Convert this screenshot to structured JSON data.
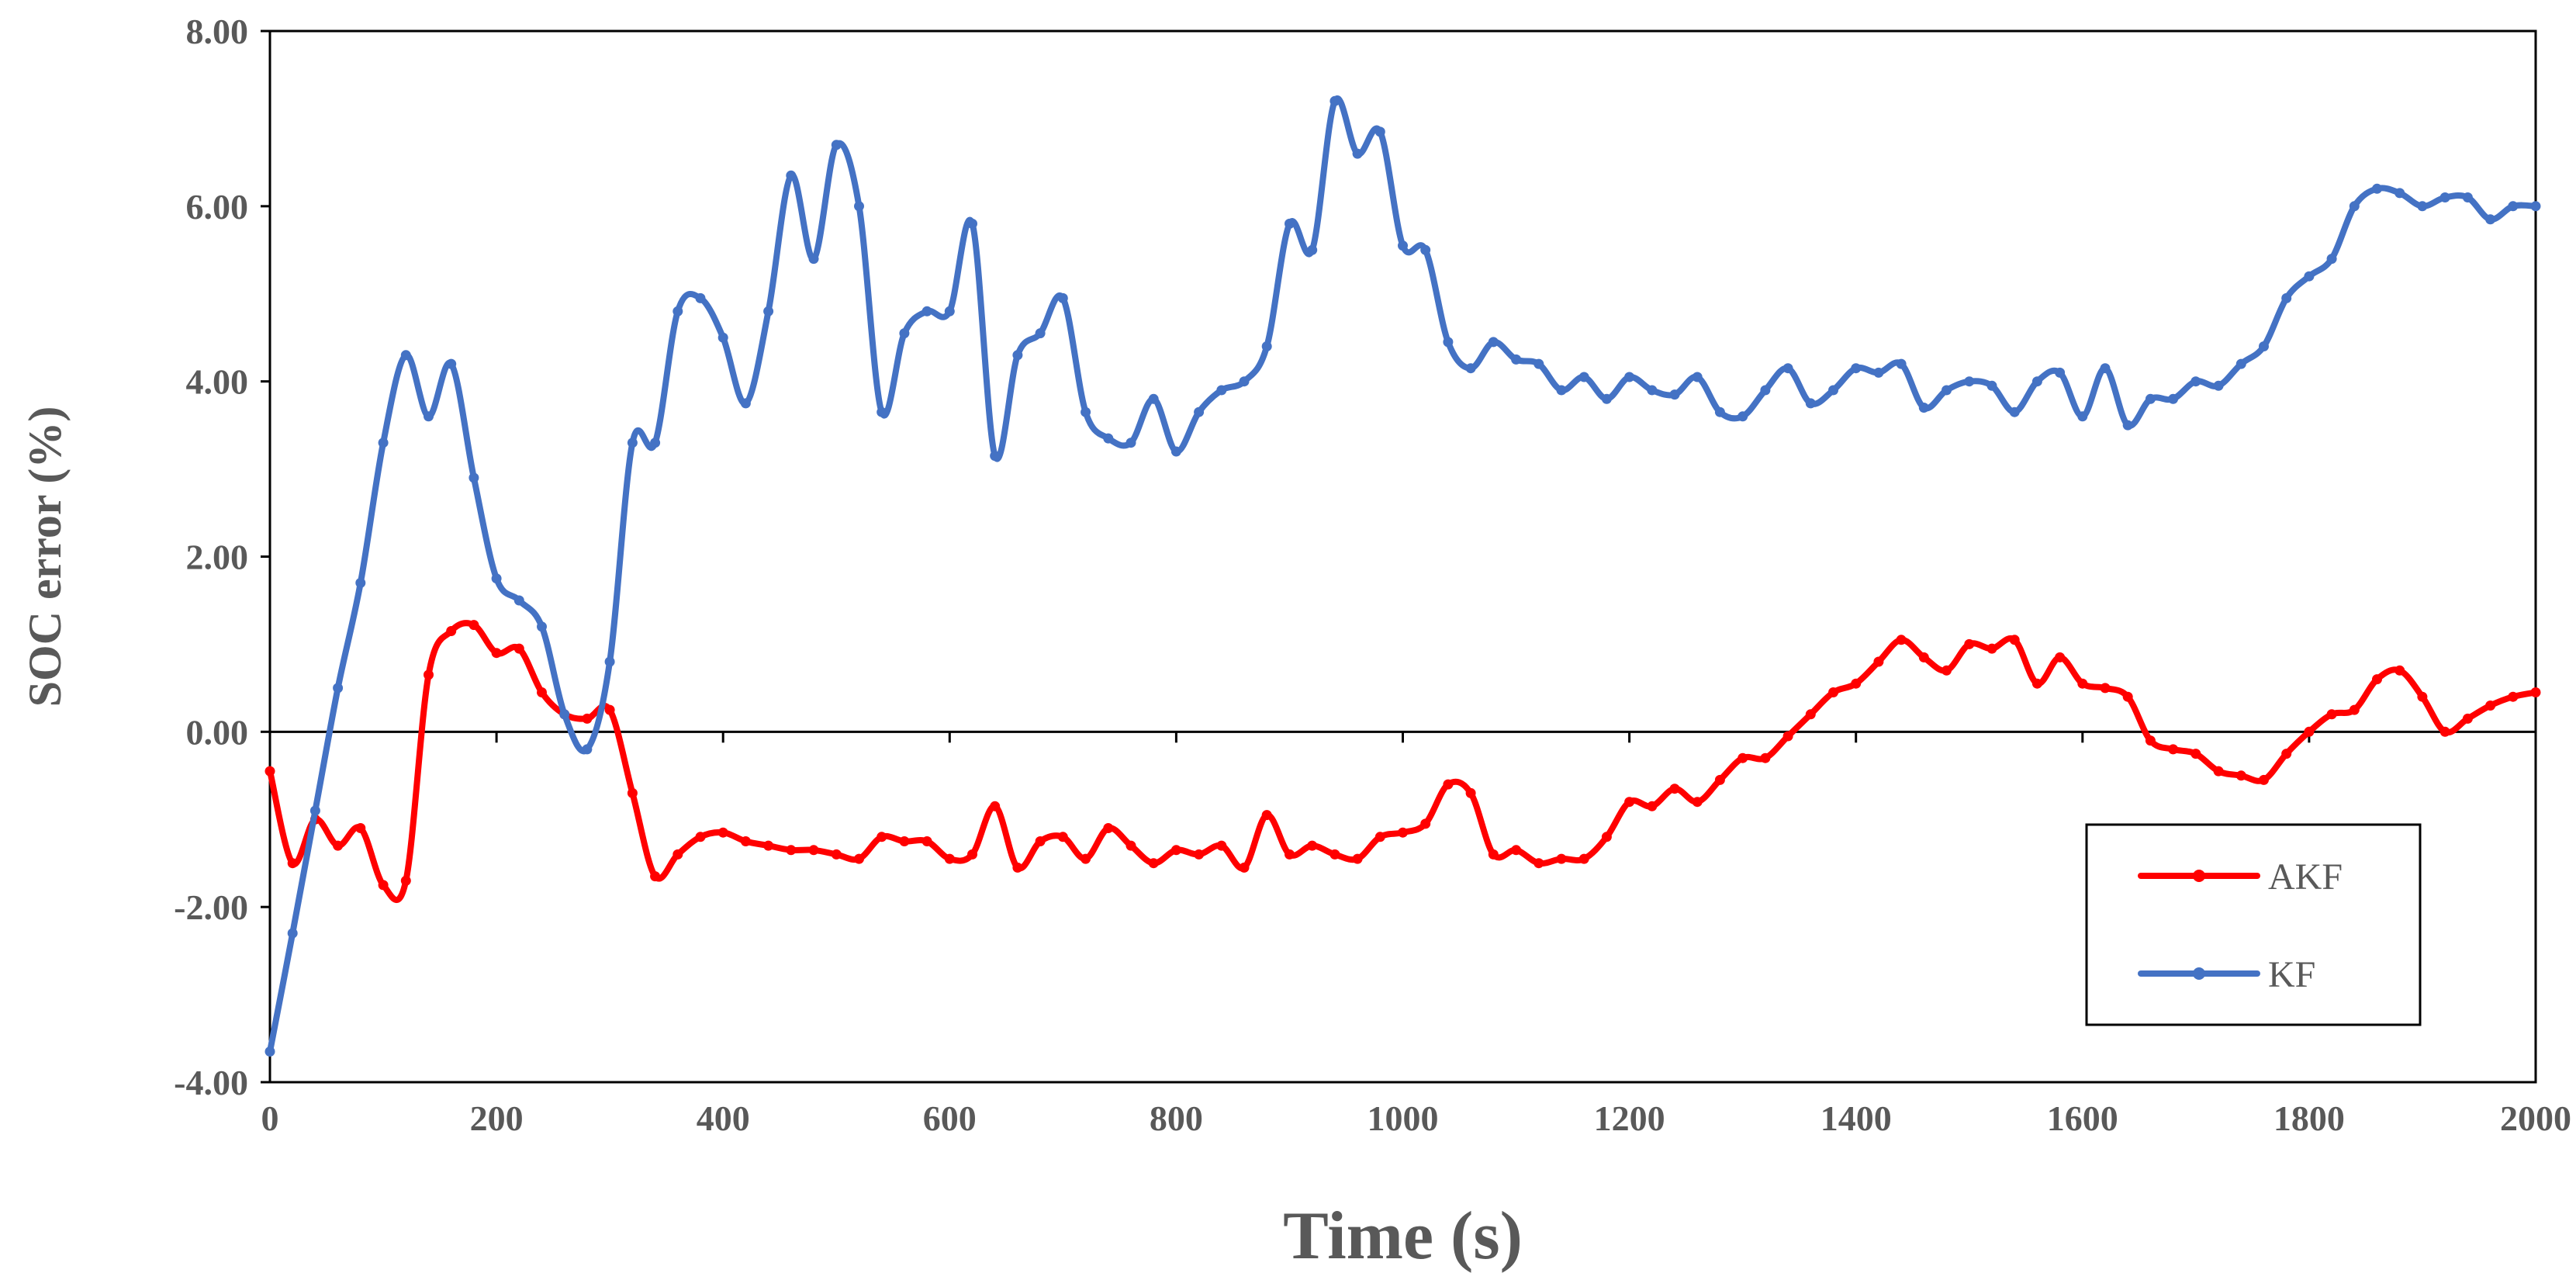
{
  "chart_data": {
    "type": "line",
    "title": "",
    "xlabel": "Time (s)",
    "ylabel": "SOC error (%)",
    "xlim": [
      0,
      2000
    ],
    "ylim": [
      -4,
      8
    ],
    "xticks": [
      0,
      200,
      400,
      600,
      800,
      1000,
      1200,
      1400,
      1600,
      1800,
      2000
    ],
    "xtick_labels": [
      "0",
      "200",
      "400",
      "600",
      "800",
      "1000",
      "1200",
      "1400",
      "1600",
      "1800",
      "2000"
    ],
    "yticks": [
      -4,
      -2,
      0,
      2,
      4,
      6,
      8
    ],
    "ytick_labels": [
      "-4.00",
      "-2.00",
      "0.00",
      "2.00",
      "4.00",
      "6.00",
      "8.00"
    ],
    "grid": false,
    "legend": "bottom-right",
    "series": [
      {
        "name": "AKF",
        "color": "#ff0000",
        "x": [
          0,
          20,
          40,
          60,
          80,
          100,
          120,
          140,
          160,
          180,
          200,
          220,
          240,
          260,
          280,
          300,
          320,
          340,
          360,
          380,
          400,
          420,
          440,
          460,
          480,
          500,
          520,
          540,
          560,
          580,
          600,
          620,
          640,
          660,
          680,
          700,
          720,
          740,
          760,
          780,
          800,
          820,
          840,
          860,
          880,
          900,
          920,
          940,
          960,
          980,
          1000,
          1020,
          1040,
          1060,
          1080,
          1100,
          1120,
          1140,
          1160,
          1180,
          1200,
          1220,
          1240,
          1260,
          1280,
          1300,
          1320,
          1340,
          1360,
          1380,
          1400,
          1420,
          1440,
          1460,
          1480,
          1500,
          1520,
          1540,
          1560,
          1580,
          1600,
          1620,
          1640,
          1660,
          1680,
          1700,
          1720,
          1740,
          1760,
          1780,
          1800,
          1820,
          1840,
          1860,
          1880,
          1900,
          1920,
          1940,
          1960,
          1980,
          2000
        ],
        "values": [
          -0.45,
          -1.5,
          -1.0,
          -1.3,
          -1.1,
          -1.75,
          -1.7,
          0.65,
          1.15,
          1.22,
          0.9,
          0.95,
          0.45,
          0.2,
          0.15,
          0.25,
          -0.7,
          -1.65,
          -1.4,
          -1.2,
          -1.15,
          -1.25,
          -1.3,
          -1.35,
          -1.35,
          -1.4,
          -1.45,
          -1.2,
          -1.25,
          -1.25,
          -1.45,
          -1.4,
          -0.85,
          -1.55,
          -1.25,
          -1.2,
          -1.45,
          -1.1,
          -1.3,
          -1.5,
          -1.35,
          -1.4,
          -1.3,
          -1.55,
          -0.95,
          -1.4,
          -1.3,
          -1.4,
          -1.45,
          -1.2,
          -1.15,
          -1.05,
          -0.6,
          -0.7,
          -1.4,
          -1.35,
          -1.5,
          -1.45,
          -1.45,
          -1.2,
          -0.8,
          -0.85,
          -0.65,
          -0.8,
          -0.55,
          -0.3,
          -0.3,
          -0.05,
          0.2,
          0.45,
          0.55,
          0.8,
          1.05,
          0.85,
          0.7,
          1.0,
          0.95,
          1.05,
          0.55,
          0.85,
          0.55,
          0.5,
          0.4,
          -0.1,
          -0.2,
          -0.25,
          -0.45,
          -0.5,
          -0.55,
          -0.25,
          0.0,
          0.2,
          0.25,
          0.6,
          0.7,
          0.4,
          0.0,
          0.15,
          0.3,
          0.4,
          0.45
        ]
      },
      {
        "name": "KF",
        "color": "#4472c4",
        "x": [
          0,
          20,
          40,
          60,
          80,
          100,
          120,
          140,
          160,
          180,
          200,
          220,
          240,
          260,
          280,
          300,
          320,
          340,
          360,
          380,
          400,
          420,
          440,
          460,
          480,
          500,
          520,
          540,
          560,
          580,
          600,
          620,
          640,
          660,
          680,
          700,
          720,
          740,
          760,
          780,
          800,
          820,
          840,
          860,
          880,
          900,
          920,
          940,
          960,
          980,
          1000,
          1020,
          1040,
          1060,
          1080,
          1100,
          1120,
          1140,
          1160,
          1180,
          1200,
          1220,
          1240,
          1260,
          1280,
          1300,
          1320,
          1340,
          1360,
          1380,
          1400,
          1420,
          1440,
          1460,
          1480,
          1500,
          1520,
          1540,
          1560,
          1580,
          1600,
          1620,
          1640,
          1660,
          1680,
          1700,
          1720,
          1740,
          1760,
          1780,
          1800,
          1820,
          1840,
          1860,
          1880,
          1900,
          1920,
          1940,
          1960,
          1980,
          2000
        ],
        "values": [
          -3.65,
          -2.3,
          -0.9,
          0.5,
          1.7,
          3.3,
          4.3,
          3.6,
          4.2,
          2.9,
          1.75,
          1.5,
          1.2,
          0.2,
          -0.2,
          0.8,
          3.3,
          3.3,
          4.8,
          4.95,
          4.5,
          3.75,
          4.8,
          6.35,
          5.4,
          6.7,
          6.0,
          3.65,
          4.55,
          4.8,
          4.8,
          5.8,
          3.15,
          4.3,
          4.55,
          4.95,
          3.65,
          3.35,
          3.3,
          3.8,
          3.2,
          3.65,
          3.9,
          4.0,
          4.4,
          5.8,
          5.5,
          7.2,
          6.6,
          6.85,
          5.55,
          5.5,
          4.45,
          4.15,
          4.45,
          4.25,
          4.2,
          3.9,
          4.05,
          3.8,
          4.05,
          3.9,
          3.85,
          4.05,
          3.65,
          3.6,
          3.9,
          4.15,
          3.75,
          3.9,
          4.15,
          4.1,
          4.2,
          3.7,
          3.9,
          4.0,
          3.95,
          3.65,
          4.0,
          4.1,
          3.6,
          4.15,
          3.5,
          3.8,
          3.8,
          4.0,
          3.95,
          4.2,
          4.4,
          4.95,
          5.2,
          5.4,
          6.0,
          6.2,
          6.15,
          6.0,
          6.1,
          6.1,
          5.85,
          6.0,
          6.0
        ]
      }
    ]
  }
}
